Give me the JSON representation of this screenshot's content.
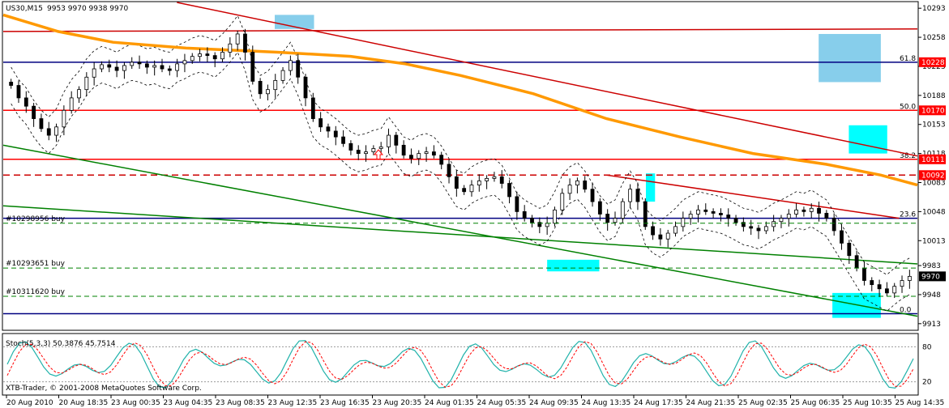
{
  "header": {
    "symbol_title": "US30,M15",
    "ohlc": "9953 9970 9938 9970"
  },
  "indicator": {
    "title": "Stoch(5,3,3) 50.3876 45.7514"
  },
  "footer": {
    "copyright": "XTB-Trader, © 2001-2008 MetaQuotes Software Corp."
  },
  "colors": {
    "accent_red": "#ff0000",
    "accent_navy": "#000080",
    "accent_orange": "#ff9900",
    "accent_green": "#008000",
    "zone_cyan": "#00ffff",
    "zone_blue": "#87ceeb",
    "candle": "#000000"
  },
  "chart_data": {
    "type": "candlestick",
    "title": "US30,M15",
    "ylim": [
      9906,
      10300
    ],
    "y_ticks": [
      "10293",
      "10258",
      "10223",
      "10188",
      "10153",
      "10118",
      "10083",
      "10048",
      "10013",
      "9983",
      "9948",
      "9913"
    ],
    "x_ticks": [
      "20 Aug 2010",
      "20 Aug 18:35",
      "23 Aug 00:35",
      "23 Aug 04:35",
      "23 Aug 08:35",
      "23 Aug 12:35",
      "23 Aug 16:35",
      "23 Aug 20:35",
      "24 Aug 01:35",
      "24 Aug 05:35",
      "24 Aug 09:35",
      "24 Aug 13:35",
      "24 Aug 17:35",
      "24 Aug 21:35",
      "25 Aug 02:35",
      "25 Aug 06:35",
      "25 Aug 10:35",
      "25 Aug 14:35"
    ],
    "price_tags": [
      {
        "price": 10228,
        "label": "10228",
        "color": "#ff0000"
      },
      {
        "price": 10170,
        "label": "10170",
        "color": "#ff0000"
      },
      {
        "price": 10111,
        "label": "10111",
        "color": "#ff0000"
      },
      {
        "price": 10092,
        "label": "10092",
        "color": "#ff0000"
      },
      {
        "price": 9970,
        "label": "9970",
        "color": "#000000"
      }
    ],
    "horizontal_levels": [
      {
        "price": 10228,
        "color": "#000080",
        "style": "solid",
        "label": "61.8"
      },
      {
        "price": 10170,
        "color": "#ff0000",
        "style": "solid",
        "label": "50.0"
      },
      {
        "price": 10111,
        "color": "#ff0000",
        "style": "solid",
        "label": "38.2"
      },
      {
        "price": 10092,
        "color": "#cc0000",
        "style": "dashed",
        "label": ""
      },
      {
        "price": 10040,
        "color": "#000080",
        "style": "solid",
        "label": "23.6"
      },
      {
        "price": 9925,
        "color": "#000080",
        "style": "solid",
        "label": "0.0"
      }
    ],
    "orders": [
      {
        "label": "#10298956 buy",
        "price": 10034
      },
      {
        "label": "#10293651 buy",
        "price": 9980
      },
      {
        "label": "#10311620 buy",
        "price": 9946
      }
    ],
    "trendlines": [
      {
        "name": "",
        "color": "#cc0000",
        "from": [
          0.19,
          10300
        ],
        "to": [
          1.0,
          10115
        ]
      },
      {
        "name": "",
        "color": "#cc0000",
        "from": [
          0.0,
          10265
        ],
        "to": [
          1.0,
          10268
        ]
      },
      {
        "name": "",
        "color": "#cc0000",
        "from": [
          0.66,
          10092
        ],
        "to": [
          0.98,
          10040
        ]
      },
      {
        "name": "",
        "color": "#008000",
        "from": [
          0.0,
          10128
        ],
        "to": [
          1.0,
          9922
        ]
      },
      {
        "name": "",
        "color": "#008000",
        "from": [
          0.0,
          10055
        ],
        "to": [
          1.0,
          9985
        ]
      }
    ],
    "moving_average": {
      "name": "",
      "color": "#ff9900",
      "points": [
        [
          0.0,
          10285
        ],
        [
          0.06,
          10265
        ],
        [
          0.12,
          10252
        ],
        [
          0.2,
          10245
        ],
        [
          0.3,
          10240
        ],
        [
          0.38,
          10235
        ],
        [
          0.44,
          10226
        ],
        [
          0.5,
          10212
        ],
        [
          0.58,
          10190
        ],
        [
          0.66,
          10160
        ],
        [
          0.74,
          10138
        ],
        [
          0.82,
          10118
        ],
        [
          0.9,
          10105
        ],
        [
          0.96,
          10092
        ],
        [
          1.0,
          10080
        ]
      ]
    },
    "close_series": [
      10200,
      10185,
      10175,
      10160,
      10148,
      10140,
      10150,
      10170,
      10185,
      10195,
      10210,
      10220,
      10225,
      10222,
      10218,
      10224,
      10228,
      10226,
      10222,
      10224,
      10220,
      10218,
      10226,
      10230,
      10235,
      10238,
      10236,
      10232,
      10240,
      10250,
      10262,
      10240,
      10205,
      10190,
      10195,
      10206,
      10218,
      10230,
      10210,
      10185,
      10160,
      10150,
      10145,
      10138,
      10130,
      10122,
      10118,
      10120,
      10124,
      10126,
      10140,
      10128,
      10116,
      10112,
      10118,
      10120,
      10116,
      10105,
      10090,
      10076,
      10072,
      10080,
      10085,
      10088,
      10090,
      10082,
      10066,
      10048,
      10040,
      10035,
      10030,
      10034,
      10050,
      10070,
      10080,
      10085,
      10075,
      10060,
      10045,
      10035,
      10040,
      10060,
      10075,
      10060,
      10030,
      10020,
      10015,
      10022,
      10030,
      10040,
      10045,
      10050,
      10048,
      10046,
      10044,
      10040,
      10035,
      10030,
      10028,
      10025,
      10030,
      10036,
      10040,
      10045,
      10050,
      10048,
      10052,
      10046,
      10040,
      10025,
      10010,
      9995,
      9980,
      9965,
      9960,
      9955,
      9950,
      9958,
      9965,
      9970
    ],
    "highlight_zones": [
      {
        "color": "#87ceeb",
        "y": [
          10268,
          10285
        ],
        "x": [
          0.297,
          0.34
        ]
      },
      {
        "color": "#87ceeb",
        "y": [
          10204,
          10262
        ],
        "x": [
          0.892,
          0.96
        ]
      },
      {
        "color": "#00ffff",
        "y": [
          10118,
          10152
        ],
        "x": [
          0.925,
          0.967
        ]
      },
      {
        "color": "#00ffff",
        "y": [
          10060,
          10094
        ],
        "x": [
          0.703,
          0.713
        ]
      },
      {
        "color": "#00ffff",
        "y": [
          9976,
          9990
        ],
        "x": [
          0.595,
          0.652
        ]
      },
      {
        "color": "#00ffff",
        "y": [
          9920,
          9950
        ],
        "x": [
          0.907,
          0.96
        ]
      }
    ],
    "stochastic": {
      "title": "Stoch(5,3,3)",
      "main": 50.3876,
      "signal": 45.7514,
      "levels": [
        "80",
        "20"
      ]
    }
  }
}
